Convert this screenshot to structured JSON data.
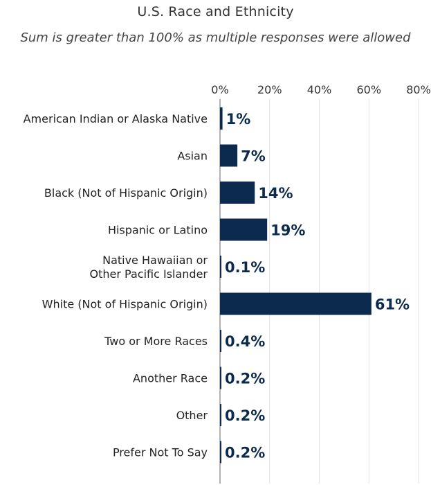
{
  "chart_data": {
    "type": "bar",
    "orientation": "horizontal",
    "title": "U.S. Race and Ethnicity",
    "subtitle": "Sum is greater than 100% as multiple responses were allowed",
    "xlim": [
      0,
      80
    ],
    "ticks": [
      0,
      20,
      40,
      60,
      80
    ],
    "tick_labels": [
      "0%",
      "20%",
      "40%",
      "60%",
      "80%"
    ],
    "grid": true,
    "bar_color": "#0c2a4d",
    "categories": [
      [
        "American Indian or Alaska Native"
      ],
      [
        "Asian"
      ],
      [
        "Black (Not of Hispanic Origin)"
      ],
      [
        "Hispanic or Latino"
      ],
      [
        "Native Hawaiian or",
        "Other Pacific Islander"
      ],
      [
        "White (Not of Hispanic Origin)"
      ],
      [
        "Two or More Races"
      ],
      [
        "Another Race"
      ],
      [
        "Other"
      ],
      [
        "Prefer Not To Say"
      ]
    ],
    "values": [
      1,
      7,
      14,
      19,
      0.1,
      61,
      0.4,
      0.2,
      0.2,
      0.2
    ],
    "data_labels": [
      "1%",
      "7%",
      "14%",
      "19%",
      "0.1%",
      "61%",
      "0.4%",
      "0.2%",
      "0.2%",
      "0.2%"
    ]
  }
}
